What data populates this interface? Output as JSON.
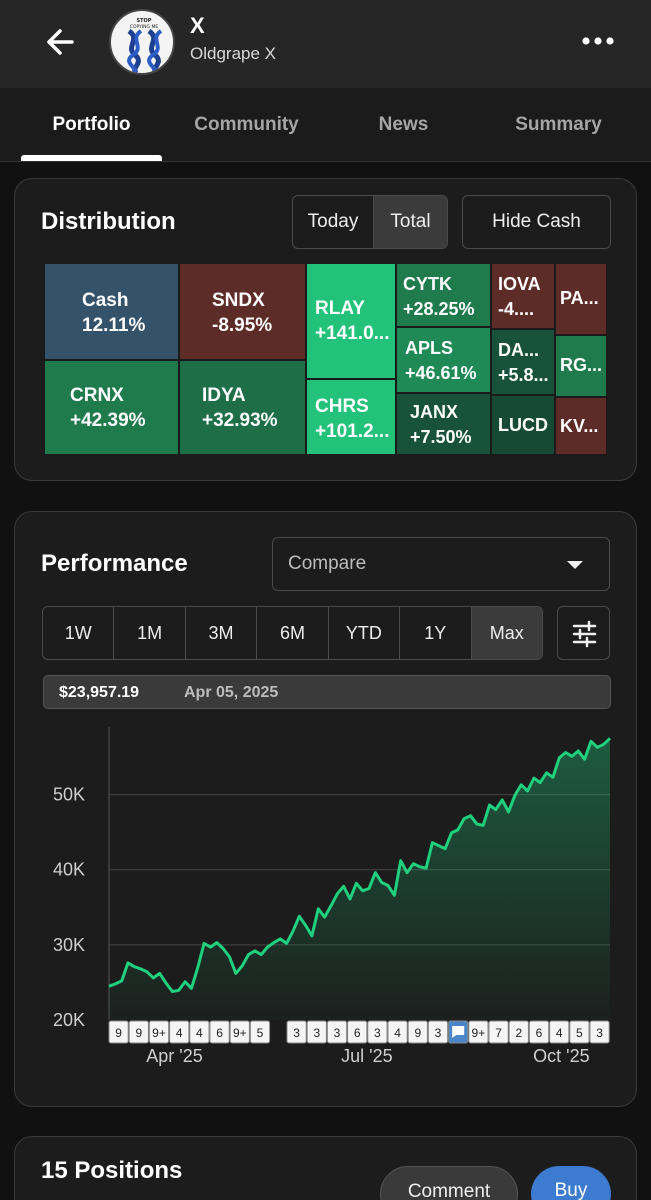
{
  "header": {
    "title": "X",
    "subtitle": "Oldgrape X",
    "avatar_text": "STOP COPYING ME"
  },
  "tabs": [
    {
      "label": "Portfolio",
      "active": true
    },
    {
      "label": "Community",
      "active": false
    },
    {
      "label": "News",
      "active": false
    },
    {
      "label": "Summary",
      "active": false
    }
  ],
  "distribution": {
    "title": "Distribution",
    "toggle": [
      "Today",
      "Total"
    ],
    "selected_toggle": "Total",
    "hide_cash_label": "Hide Cash",
    "tiles": [
      {
        "name": "Cash",
        "pct": "12.11%",
        "color": "#34536b"
      },
      {
        "name": "SNDX",
        "pct": "-8.95%",
        "color": "#5e2c28"
      },
      {
        "name": "CRNX",
        "pct": "+42.39%",
        "color": "#1f7a4c"
      },
      {
        "name": "IDYA",
        "pct": "+32.93%",
        "color": "#1e6f47"
      },
      {
        "name": "RLAY",
        "pct": "+141.0...",
        "color": "#23c27a"
      },
      {
        "name": "CHRS",
        "pct": "+101.2...",
        "color": "#23c27a"
      },
      {
        "name": "CYTK",
        "pct": "+28.25%",
        "color": "#1f7a4c"
      },
      {
        "name": "APLS",
        "pct": "+46.61%",
        "color": "#1f8a55"
      },
      {
        "name": "JANX",
        "pct": "+7.50%",
        "color": "#18523a"
      },
      {
        "name": "IOVA",
        "pct": "-4....",
        "color": "#5e2c28"
      },
      {
        "name": "DA...",
        "pct": "+5.8...",
        "color": "#18523a"
      },
      {
        "name": "LUCD",
        "pct": "",
        "color": "#174a35"
      },
      {
        "name": "PA...",
        "pct": "",
        "color": "#5e2c28"
      },
      {
        "name": "RG...",
        "pct": "",
        "color": "#1f7a4c"
      },
      {
        "name": "KV...",
        "pct": "",
        "color": "#5e2c28"
      }
    ]
  },
  "performance": {
    "title": "Performance",
    "compare_placeholder": "Compare",
    "ranges": [
      "1W",
      "1M",
      "3M",
      "6M",
      "YTD",
      "1Y",
      "Max"
    ],
    "selected_range": "Max",
    "tooltip_value": "$23,957.19",
    "tooltip_date": "Apr 05, 2025",
    "line_color": "#1fd17f",
    "event_markers": [
      "9",
      "9",
      "9+",
      "4",
      "4",
      "6",
      "9+",
      "5",
      "3",
      "3",
      "3",
      "6",
      "3",
      "4",
      "9",
      "3",
      "comment-icon",
      "9+",
      "7",
      "2",
      "6",
      "4",
      "5",
      "3"
    ]
  },
  "chart_data": {
    "type": "area",
    "title": "",
    "xlabel": "",
    "ylabel": "",
    "x_ticks": [
      "Apr '25",
      "Jul '25",
      "Oct '25"
    ],
    "y_ticks": [
      "20K",
      "30K",
      "40K",
      "50K"
    ],
    "ylim": [
      20000,
      59000
    ],
    "grid": true,
    "series": [
      {
        "x": [
          "2025-03-01",
          "2025-03-04",
          "2025-03-07",
          "2025-03-10",
          "2025-03-13",
          "2025-03-16",
          "2025-03-19",
          "2025-03-22",
          "2025-03-25",
          "2025-03-28",
          "2025-03-31",
          "2025-04-03",
          "2025-04-06",
          "2025-04-09",
          "2025-04-12",
          "2025-04-15",
          "2025-04-18",
          "2025-04-21",
          "2025-04-24",
          "2025-04-27",
          "2025-04-30",
          "2025-05-03",
          "2025-05-06",
          "2025-05-09",
          "2025-05-12",
          "2025-05-15",
          "2025-05-18",
          "2025-05-21",
          "2025-05-24",
          "2025-05-27",
          "2025-05-30",
          "2025-06-02",
          "2025-06-05",
          "2025-06-08",
          "2025-06-11",
          "2025-06-14",
          "2025-06-17",
          "2025-06-20",
          "2025-06-23",
          "2025-06-26",
          "2025-06-29",
          "2025-07-02",
          "2025-07-05",
          "2025-07-08",
          "2025-07-11",
          "2025-07-14",
          "2025-07-17",
          "2025-07-20",
          "2025-07-23",
          "2025-07-26",
          "2025-07-29",
          "2025-08-01",
          "2025-08-04",
          "2025-08-07",
          "2025-08-10",
          "2025-08-13",
          "2025-08-16",
          "2025-08-19",
          "2025-08-22",
          "2025-08-25",
          "2025-08-28",
          "2025-08-31",
          "2025-09-03",
          "2025-09-06",
          "2025-09-09",
          "2025-09-12",
          "2025-09-15",
          "2025-09-18",
          "2025-09-21",
          "2025-09-24",
          "2025-09-27",
          "2025-09-30",
          "2025-10-03",
          "2025-10-06",
          "2025-10-09",
          "2025-10-12",
          "2025-10-15",
          "2025-10-18",
          "2025-10-21",
          "2025-10-24"
        ],
        "y": [
          24500,
          24800,
          25200,
          27600,
          27100,
          26800,
          26400,
          25600,
          26200,
          24900,
          23800,
          23957,
          25100,
          24200,
          27000,
          30200,
          29700,
          30300,
          29500,
          28400,
          26200,
          27200,
          28700,
          29200,
          28700,
          29700,
          30300,
          30800,
          30200,
          31800,
          33800,
          32600,
          31200,
          34800,
          33700,
          35200,
          36800,
          37800,
          36100,
          38200,
          37200,
          37500,
          39600,
          38300,
          37900,
          36600,
          41200,
          39600,
          40800,
          40400,
          40200,
          43600,
          43200,
          42800,
          44900,
          45300,
          46800,
          47200,
          46100,
          45900,
          48600,
          48000,
          49300,
          47700,
          49900,
          51300,
          50500,
          52200,
          51600,
          52900,
          52300,
          54900,
          55600,
          55100,
          55800,
          54700,
          57100,
          56300,
          56700,
          57500
        ]
      }
    ]
  },
  "positions": {
    "title": "15 Positions",
    "comment_label": "Comment",
    "buy_label": "Buy"
  }
}
